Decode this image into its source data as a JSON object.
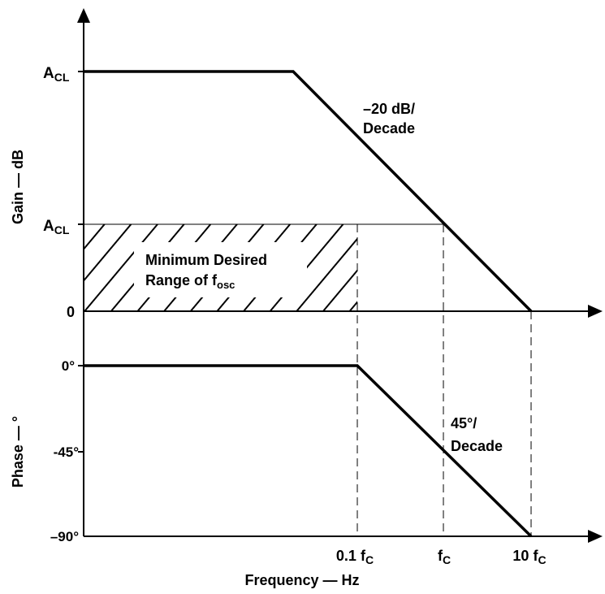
{
  "gain": {
    "ylabel": "Gain — dB",
    "levels": {
      "top": {
        "label": "A",
        "sub": "CL"
      },
      "mid": {
        "label": "A",
        "sub": "CL"
      },
      "zero": "0"
    },
    "slope_label": [
      "–20 dB/",
      "Decade"
    ],
    "hatch_label": {
      "line1": "Minimum Desired",
      "line2": "Range of f",
      "sub": "osc"
    }
  },
  "phase": {
    "ylabel": "Phase — °",
    "ticks": [
      "0°",
      "-45°",
      "–90°"
    ],
    "slope_label": [
      "45°/",
      "Decade"
    ]
  },
  "frequency": {
    "xlabel": "Frequency — Hz",
    "ticks": [
      {
        "main": "0.1 f",
        "sub": "C"
      },
      {
        "main": "f",
        "sub": "C"
      },
      {
        "main": "10 f",
        "sub": "C"
      }
    ]
  },
  "colors": {
    "line": "#000000",
    "background": "#ffffff"
  }
}
